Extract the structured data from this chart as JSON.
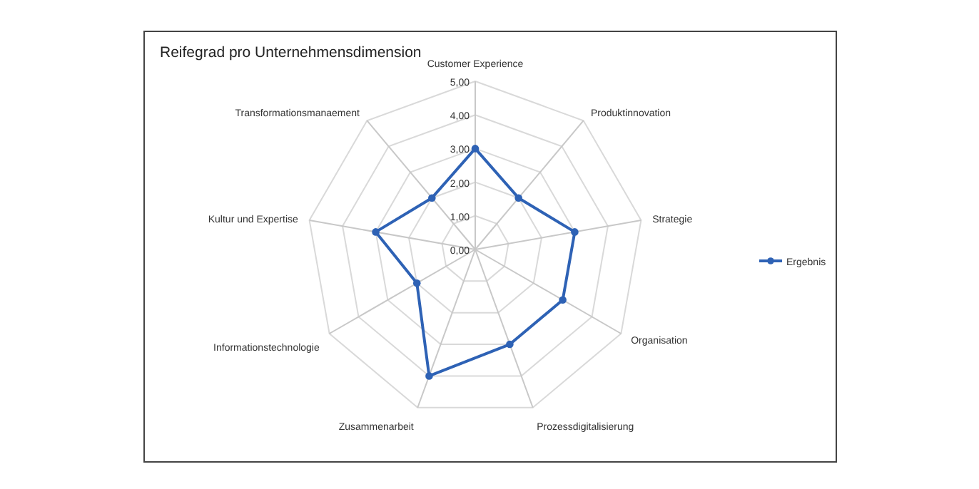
{
  "chart_data": {
    "type": "radar",
    "title": "Reifegrad pro Unternehmensdimension",
    "categories": [
      "Customer Experience",
      "Produktinnovation",
      "Strategie",
      "Organisation",
      "Prozessdigitalisierung",
      "Zusammenarbeit",
      "Informationstechnologie",
      "Kultur und Expertise",
      "Transformationsmanaement"
    ],
    "series": [
      {
        "name": "Ergebnis",
        "color": "#2e62b5",
        "values": [
          3.0,
          2.0,
          3.0,
          3.0,
          3.0,
          4.0,
          2.0,
          3.0,
          2.0
        ]
      }
    ],
    "ylim": [
      0,
      5
    ],
    "yticks": [
      {
        "value": 0,
        "label": "0,00"
      },
      {
        "value": 1,
        "label": "1,00"
      },
      {
        "value": 2,
        "label": "2,00"
      },
      {
        "value": 3,
        "label": "3,00"
      },
      {
        "value": 4,
        "label": "4,00"
      },
      {
        "value": 5,
        "label": "5,00"
      }
    ],
    "grid": true,
    "legend": "right",
    "marker": "circle"
  }
}
